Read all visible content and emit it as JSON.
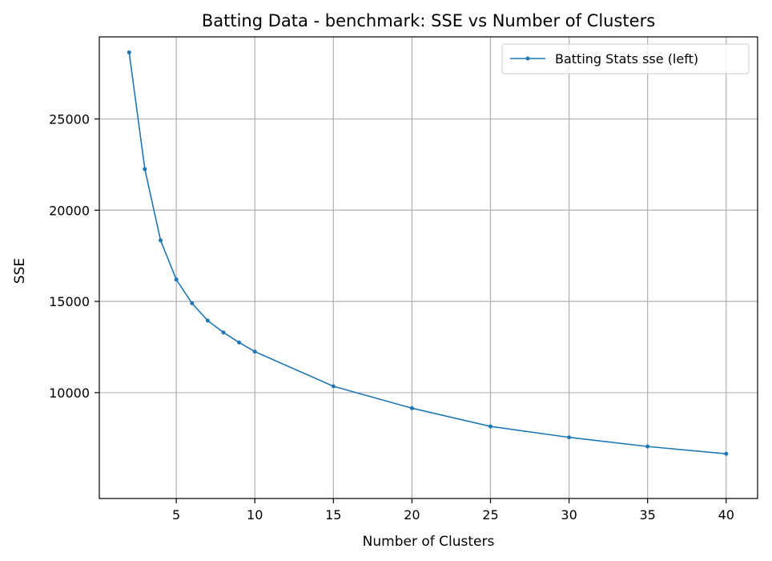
{
  "chart_data": {
    "type": "line",
    "title": "Batting Data - benchmark: SSE vs Number of Clusters",
    "xlabel": "Number of Clusters",
    "ylabel": "SSE",
    "xlim": [
      0.1,
      42.0
    ],
    "ylim": [
      4200,
      29500
    ],
    "xticks": [
      5,
      10,
      15,
      20,
      25,
      30,
      35,
      40
    ],
    "yticks": [
      10000,
      15000,
      20000,
      25000
    ],
    "grid": true,
    "legend": "top-right",
    "series": [
      {
        "name": "Batting Stats sse (left)",
        "color": "#1f77b4",
        "marker": "circle",
        "x": [
          2,
          3,
          4,
          5,
          6,
          7,
          8,
          9,
          10,
          15,
          20,
          25,
          30,
          35,
          40
        ],
        "y": [
          28650,
          22250,
          18350,
          16200,
          14900,
          13950,
          13300,
          12750,
          12250,
          10350,
          9150,
          8150,
          7550,
          7050,
          6650
        ]
      }
    ]
  }
}
